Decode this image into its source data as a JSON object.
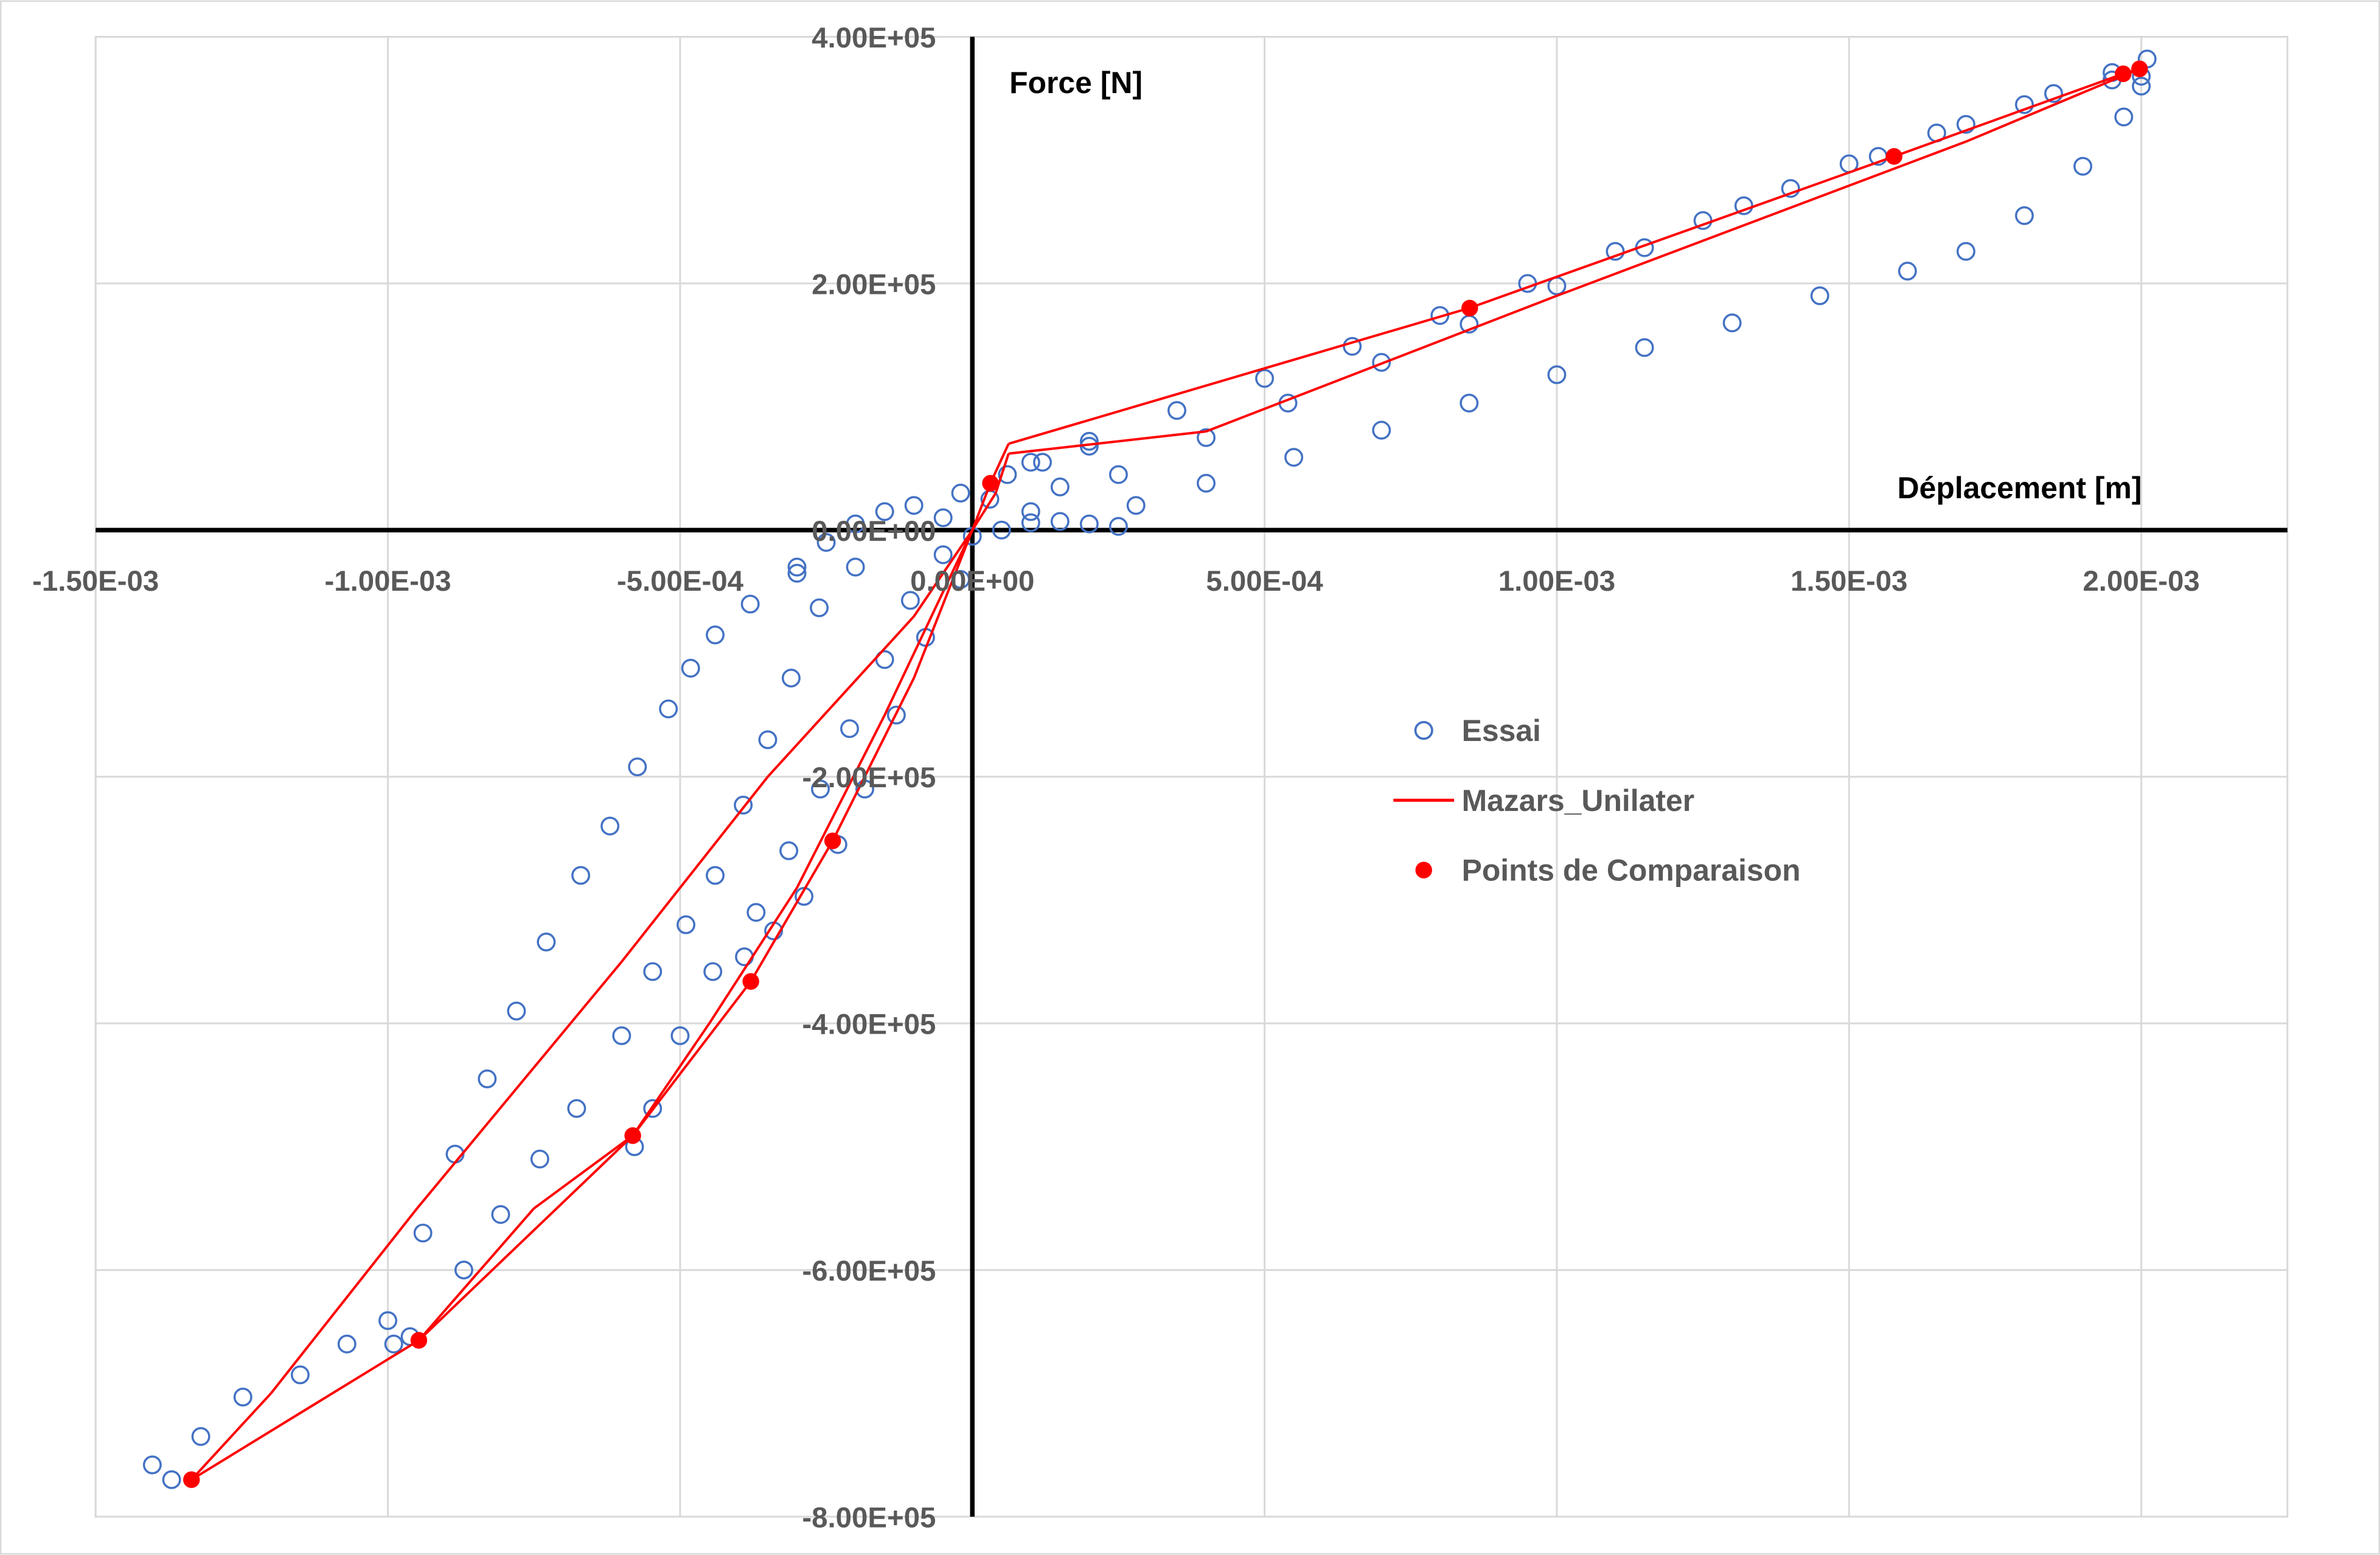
{
  "chart_data": {
    "type": "scatter",
    "title": "",
    "xlabel": "Déplacement [m]",
    "ylabel": "Force [N]",
    "xlim": [
      -0.0015,
      0.00225
    ],
    "ylim": [
      -800000.0,
      400000.0
    ],
    "grid": true,
    "legend_position": "center-right",
    "x_ticks": [
      -0.0015,
      -0.001,
      -0.0005,
      0,
      0.0005,
      0.001,
      0.0015,
      0.002
    ],
    "x_tick_labels": [
      "-1.50E-03",
      "-1.00E-03",
      "-5.00E-04",
      "0.00E+00",
      "5.00E-04",
      "1.00E-03",
      "1.50E-03",
      "2.00E-03"
    ],
    "y_ticks": [
      400000.0,
      200000.0,
      0,
      -200000.0,
      -400000.0,
      -600000.0,
      -800000.0
    ],
    "y_tick_labels": [
      "4.00E+05",
      "2.00E+05",
      "0.00E+00",
      "-2.00E+05",
      "-4.00E+05",
      "-6.00E+05",
      "-8.00E+05"
    ],
    "colors": {
      "essai": "#4472C4",
      "mazars": "#FF0000",
      "points": "#FF0000",
      "grid": "#D9D9D9",
      "axis": "#000000"
    },
    "series": [
      {
        "name": "Essai",
        "kind": "marker-open-circle",
        "points": [
          [
            0.0001,
            55000.0
          ],
          [
            0.0002,
            72000.0
          ],
          [
            0.00035,
            97000.0
          ],
          [
            0.0005,
            123000.0
          ],
          [
            0.00065,
            149000.0
          ],
          [
            0.0008,
            174000.0
          ],
          [
            0.00095,
            200000.0
          ],
          [
            0.0011,
            226000.0
          ],
          [
            0.00125,
            251000.0
          ],
          [
            0.0014,
            277000.0
          ],
          [
            0.00155,
            303000.0
          ],
          [
            0.0017,
            329000.0
          ],
          [
            0.00185,
            354000.0
          ],
          [
            0.00195,
            371000.0
          ],
          [
            0.00201,
            382000.0
          ],
          [
            0.0001,
            15000.0
          ],
          [
            0.00025,
            45000.0
          ],
          [
            0.0004,
            75000.0
          ],
          [
            0.00054,
            103000.0
          ],
          [
            0.0007,
            136000.0
          ],
          [
            0.00085,
            167000.0
          ],
          [
            0.001,
            198000.0
          ],
          [
            0.00115,
            229000.0
          ],
          [
            0.00132,
            263000.0
          ],
          [
            0.0015,
            297000.0
          ],
          [
            0.00165,
            322000.0
          ],
          [
            0.0018,
            345000.0
          ],
          [
            0.00195,
            365000.0
          ],
          [
            0.002,
            368000.0
          ],
          [
            0.00028,
            20000.0
          ],
          [
            0.0004,
            38000.0
          ],
          [
            0.00055,
            59000.0
          ],
          [
            0.0007,
            81000.0
          ],
          [
            0.00085,
            103000.0
          ],
          [
            0.001,
            126000.0
          ],
          [
            0.00115,
            148000.0
          ],
          [
            0.0013,
            168000.0
          ],
          [
            0.00145,
            190000.0
          ],
          [
            0.0016,
            210000.0
          ],
          [
            0.0017,
            226000.0
          ],
          [
            0.0018,
            255000.0
          ],
          [
            0.0019,
            295000.0
          ],
          [
            0.00197,
            335000.0
          ],
          [
            0.002,
            360000.0
          ],
          [
            0.00025,
            3000.0
          ],
          [
            0.0002,
            5000.0
          ],
          [
            0.00015,
            7000.0
          ],
          [
            0.0001,
            6000.0
          ],
          [
            5e-05,
            0
          ],
          [
            0,
            -5000.0
          ],
          [
            -5e-05,
            10000.0
          ],
          [
            -0.0001,
            20000.0
          ],
          [
            -0.00015,
            15000.0
          ],
          [
            -2e-05,
            30000.0
          ],
          [
            3e-05,
            25000.0
          ],
          [
            6e-05,
            45000.0
          ],
          [
            0.00012,
            55000.0
          ],
          [
            0.0002,
            68000.0
          ],
          [
            0.00015,
            35000.0
          ],
          [
            -0.0002,
            5000.0
          ],
          [
            -0.00025,
            -10000.0
          ],
          [
            -0.0003,
            -30000.0
          ],
          [
            -0.0003,
            -35000.0
          ],
          [
            -0.00038,
            -60000.0
          ],
          [
            -0.00044,
            -85000.0
          ],
          [
            -0.000482,
            -112000.0
          ],
          [
            -0.00052,
            -145000.0
          ],
          [
            -0.000573,
            -192000.0
          ],
          [
            -0.00062,
            -240000.0
          ],
          [
            -0.00067,
            -280000.0
          ],
          [
            -0.000729,
            -334000.0
          ],
          [
            -0.00078,
            -390000.0
          ],
          [
            -0.00083,
            -445000.0
          ],
          [
            -0.000885,
            -506000.0
          ],
          [
            -0.00094,
            -570000.0
          ],
          [
            -0.001,
            -641000.0
          ],
          [
            -0.00107,
            -660000.0
          ],
          [
            -0.00115,
            -685000.0
          ],
          [
            -0.001248,
            -703000.0
          ],
          [
            -0.00132,
            -735000.0
          ],
          [
            -0.001403,
            -758000.0
          ],
          [
            -0.00137,
            -770000.0
          ],
          [
            -0.0002,
            -30000.0
          ],
          [
            -0.000262,
            -63000.0
          ],
          [
            -0.00031,
            -120000.0
          ],
          [
            -0.00035,
            -170000.0
          ],
          [
            -0.000392,
            -223000.0
          ],
          [
            -0.00044,
            -280000.0
          ],
          [
            -0.00049,
            -320000.0
          ],
          [
            -0.000547,
            -358000.0
          ],
          [
            -0.0006,
            -410000.0
          ],
          [
            -0.000677,
            -469000.0
          ],
          [
            -0.00074,
            -510000.0
          ],
          [
            -0.000807,
            -555000.0
          ],
          [
            -0.00087,
            -600000.0
          ],
          [
            -0.000962,
            -654000.0
          ],
          [
            -0.00099,
            -660000.0
          ],
          [
            -5e-05,
            -20000.0
          ],
          [
            -0.000106,
            -57000.0
          ],
          [
            -0.00015,
            -105000.0
          ],
          [
            -0.00021,
            -161000.0
          ],
          [
            -0.00026,
            -210000.0
          ],
          [
            -0.000314,
            -260000.0
          ],
          [
            -0.00037,
            -310000.0
          ],
          [
            -0.000444,
            -358000.0
          ],
          [
            -0.0005,
            -410000.0
          ],
          [
            -0.000547,
            -469000.0
          ],
          [
            -0.000578,
            -500000.0
          ],
          [
            -2e-05,
            -40000.0
          ],
          [
            -8e-05,
            -87000.0
          ],
          [
            -0.00013,
            -150000.0
          ],
          [
            -0.000184,
            -210000.0
          ],
          [
            -0.00023,
            -255000.0
          ],
          [
            -0.000288,
            -297000.0
          ],
          [
            -0.00034,
            -325000.0
          ],
          [
            -0.00039,
            -346000.0
          ]
        ]
      },
      {
        "name": "Mazars_Unilater",
        "kind": "line",
        "points": [
          [
            0,
            0
          ],
          [
            3.1e-05,
            38000.0
          ],
          [
            6.2e-05,
            70000.0
          ],
          [
            0.00085,
            180000.0
          ],
          [
            0.001577,
            303000.0
          ],
          [
            0.001969,
            370000.0
          ],
          [
            0.001997,
            374000.0
          ],
          [
            0.0017,
            315000.0
          ],
          [
            0.001,
            190000.0
          ],
          [
            0.0004,
            80000.0
          ],
          [
            6.2e-05,
            62000.0
          ],
          [
            4e-05,
            30000.0
          ],
          [
            0,
            0
          ],
          [
            -0.0001,
            -120000.0
          ],
          [
            -0.000239,
            -252000.0
          ],
          [
            -0.000379,
            -366000.0
          ],
          [
            -0.000581,
            -491000.0
          ],
          [
            -0.000947,
            -657000.0
          ],
          [
            -0.001336,
            -770000.0
          ],
          [
            -0.0012,
            -700000.0
          ],
          [
            -0.00095,
            -550000.0
          ],
          [
            -0.0006,
            -350000.0
          ],
          [
            -0.00035,
            -200000.0
          ],
          [
            -0.0001,
            -70000.0
          ],
          [
            0,
            0
          ],
          [
            -0.00015,
            -150000.0
          ],
          [
            -0.0003,
            -290000.0
          ],
          [
            -0.00045,
            -400000.0
          ],
          [
            -0.000581,
            -491000.0
          ],
          [
            -0.00075,
            -550000.0
          ],
          [
            -0.000947,
            -657000.0
          ]
        ]
      },
      {
        "name": "Points de Comparaison",
        "kind": "marker-filled-circle",
        "points": [
          [
            3.1e-05,
            38000.0
          ],
          [
            0.000851,
            180000.0
          ],
          [
            0.001577,
            303000.0
          ],
          [
            0.001969,
            370000.0
          ],
          [
            0.001997,
            374000.0
          ],
          [
            -0.000239,
            -252000.0
          ],
          [
            -0.000379,
            -366000.0
          ],
          [
            -0.000581,
            -491000.0
          ],
          [
            -0.000947,
            -657000.0
          ],
          [
            -0.001336,
            -770000.0
          ]
        ]
      }
    ]
  }
}
